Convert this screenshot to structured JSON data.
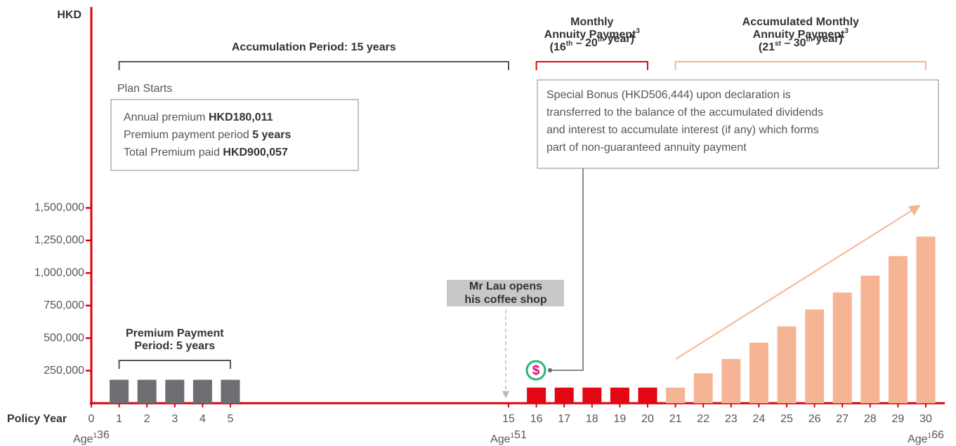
{
  "chart_data": {
    "type": "bar",
    "y_label": "HKD",
    "x_label": "Policy Year",
    "xlim": [
      0,
      30
    ],
    "xticks": [
      0,
      1,
      2,
      3,
      4,
      5,
      15,
      16,
      17,
      18,
      19,
      20,
      21,
      22,
      23,
      24,
      25,
      26,
      27,
      28,
      29,
      30
    ],
    "ylim": [
      0,
      3000000
    ],
    "yticks": [
      {
        "value": 250000,
        "label": "250,000"
      },
      {
        "value": 500000,
        "label": "500,000"
      },
      {
        "value": 750000,
        "label": "750,000"
      },
      {
        "value": 1000000,
        "label": "1,000,000"
      },
      {
        "value": 1250000,
        "label": "1,250,000"
      },
      {
        "value": 1500000,
        "label": "1,500,000"
      }
    ],
    "series": [
      {
        "color": "#6d6e71",
        "x": [
          1,
          2,
          3,
          4,
          5
        ],
        "values": [
          180011,
          180011,
          180011,
          180011,
          180011
        ]
      },
      {
        "color": "#e30613",
        "x": [
          16,
          17,
          18,
          19,
          20
        ],
        "values": [
          120000,
          120000,
          120000,
          120000,
          120000
        ]
      },
      {
        "color": "#f5b595",
        "x": [
          21,
          22,
          23,
          24,
          25,
          26,
          27,
          28,
          29,
          30
        ],
        "values": [
          120000,
          230000,
          340000,
          465000,
          590000,
          720000,
          850000,
          980000,
          1130000,
          1280000
        ]
      }
    ],
    "ages": [
      {
        "x": 0,
        "parts": [
          "Age",
          {
            "sup": "1"
          },
          "36"
        ]
      },
      {
        "x": 15,
        "parts": [
          "Age",
          {
            "sup": "1"
          },
          "51"
        ]
      },
      {
        "x": 30,
        "parts": [
          "Age",
          {
            "sup": "1"
          },
          "66"
        ]
      }
    ],
    "annotations": [
      {
        "span": [
          1,
          15
        ],
        "color": "#555555",
        "lines": [
          [
            "Accumulation Period: 15 years"
          ]
        ]
      },
      {
        "span": [
          16,
          20
        ],
        "color": "#e30613",
        "lines": [
          [
            "Monthly"
          ],
          [
            "Annuity Payment",
            {
              "sup": "3"
            }
          ],
          [
            "(16",
            {
              "sup": "th"
            },
            " – 20",
            {
              "sup": "th"
            },
            " year)"
          ]
        ]
      },
      {
        "span": [
          21,
          30
        ],
        "color": "#f5b595",
        "lines": [
          [
            "Accumulated Monthly"
          ],
          [
            "Annuity Payment",
            {
              "sup": "3"
            }
          ],
          [
            "(21",
            {
              "sup": "st"
            },
            " – 30",
            {
              "sup": "th"
            },
            " year)"
          ]
        ]
      },
      {
        "span": [
          1,
          5
        ],
        "color": "#555555",
        "lines": [
          [
            "Premium Payment"
          ],
          [
            "Period: 5 years"
          ]
        ]
      }
    ],
    "plan_starts": "Plan Starts",
    "premium_box": [
      [
        "Annual premium ",
        {
          "b": "HKD180,011"
        }
      ],
      [
        "Premium payment period ",
        {
          "b": "5 years"
        }
      ],
      [
        "Total Premium paid ",
        {
          "b": "HKD900,057"
        }
      ]
    ],
    "bonus_box": [
      "Special Bonus (HKD506,444) upon declaration is",
      "transferred to the balance of the accumulated dividends",
      "and interest to accumulate interest (if any) which forms",
      "part of non-guaranteed annuity payment"
    ],
    "event_box": [
      "Mr Lau opens",
      "his coffee shop"
    ],
    "icon": "$"
  }
}
